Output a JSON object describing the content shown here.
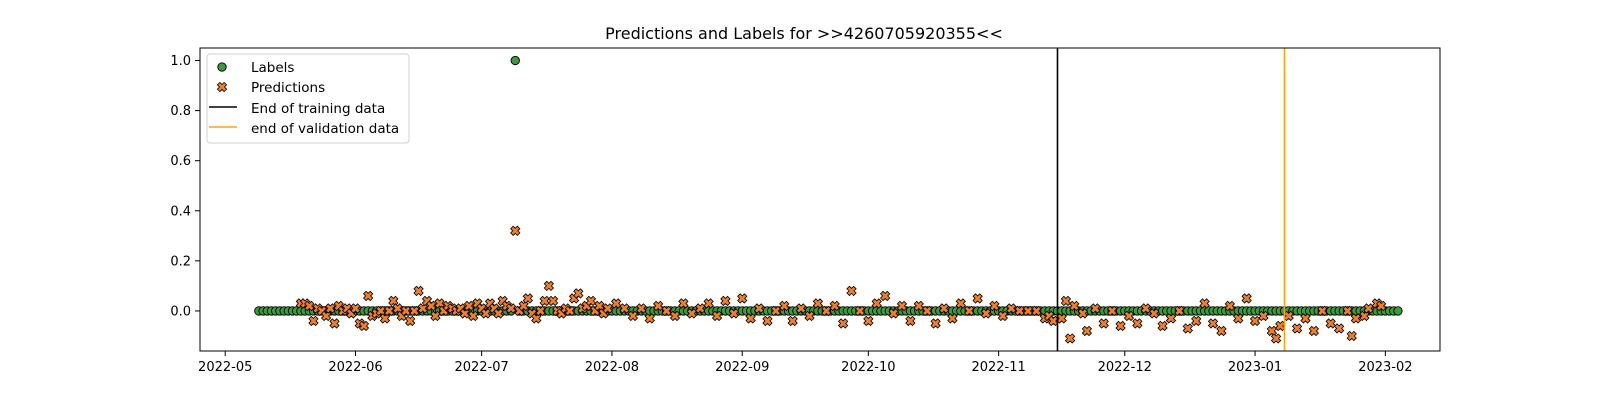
{
  "chart_data": {
    "type": "scatter",
    "title": "Predictions and Labels for >>4260705920355<<",
    "xlabel": "",
    "ylabel": "",
    "xlim": [
      "2022-04-25",
      "2023-02-14"
    ],
    "ylim": [
      -0.16,
      1.05
    ],
    "x_ticks": [
      "2022-05",
      "2022-06",
      "2022-07",
      "2022-08",
      "2022-09",
      "2022-10",
      "2022-11",
      "2022-12",
      "2023-01",
      "2023-02"
    ],
    "y_ticks": [
      "0.0",
      "0.2",
      "0.4",
      "0.6",
      "0.8",
      "1.0"
    ],
    "grid": false,
    "legend": {
      "location": "upper-left",
      "entries": [
        "Labels",
        "Predictions",
        "End of training data",
        "end of validation data"
      ]
    },
    "colors": {
      "labels": "#3a9c3a",
      "predictions": "#f07f26",
      "end_of_training": "#000000",
      "end_of_validation": "#ffa500"
    },
    "date_range": [
      "2022-05-09",
      "2023-02-04"
    ],
    "series": [
      {
        "name": "Labels",
        "marker": "circle",
        "baseline_value": 0.0,
        "spikes": [
          {
            "x": "2022-07-09",
            "y": 1.0
          }
        ]
      },
      {
        "name": "Predictions",
        "marker": "x",
        "points": [
          [
            "2022-05-19",
            0.03
          ],
          [
            "2022-05-20",
            0.03
          ],
          [
            "2022-05-21",
            0.02
          ],
          [
            "2022-05-22",
            -0.04
          ],
          [
            "2022-05-23",
            0.01
          ],
          [
            "2022-05-24",
            0.0
          ],
          [
            "2022-05-25",
            -0.02
          ],
          [
            "2022-05-26",
            0.01
          ],
          [
            "2022-05-27",
            -0.05
          ],
          [
            "2022-05-28",
            0.02
          ],
          [
            "2022-05-29",
            0.0
          ],
          [
            "2022-05-30",
            0.01
          ],
          [
            "2022-05-31",
            -0.01
          ],
          [
            "2022-06-01",
            0.01
          ],
          [
            "2022-06-02",
            -0.05
          ],
          [
            "2022-06-03",
            -0.06
          ],
          [
            "2022-06-04",
            0.06
          ],
          [
            "2022-06-05",
            -0.02
          ],
          [
            "2022-06-06",
            -0.01
          ],
          [
            "2022-06-07",
            0.0
          ],
          [
            "2022-06-08",
            -0.03
          ],
          [
            "2022-06-09",
            0.0
          ],
          [
            "2022-06-10",
            0.04
          ],
          [
            "2022-06-11",
            0.01
          ],
          [
            "2022-06-12",
            -0.02
          ],
          [
            "2022-06-13",
            0.0
          ],
          [
            "2022-06-14",
            -0.04
          ],
          [
            "2022-06-15",
            0.0
          ],
          [
            "2022-06-16",
            0.08
          ],
          [
            "2022-06-17",
            0.01
          ],
          [
            "2022-06-18",
            0.04
          ],
          [
            "2022-06-19",
            0.02
          ],
          [
            "2022-06-20",
            -0.02
          ],
          [
            "2022-06-21",
            0.03
          ],
          [
            "2022-06-22",
            0.0
          ],
          [
            "2022-06-23",
            0.02
          ],
          [
            "2022-06-24",
            0.01
          ],
          [
            "2022-06-25",
            0.0
          ],
          [
            "2022-06-26",
            0.01
          ],
          [
            "2022-06-27",
            -0.01
          ],
          [
            "2022-06-28",
            0.02
          ],
          [
            "2022-06-29",
            -0.02
          ],
          [
            "2022-06-30",
            0.03
          ],
          [
            "2022-07-01",
            0.01
          ],
          [
            "2022-07-02",
            -0.01
          ],
          [
            "2022-07-03",
            0.03
          ],
          [
            "2022-07-04",
            0.01
          ],
          [
            "2022-07-05",
            -0.01
          ],
          [
            "2022-07-06",
            0.04
          ],
          [
            "2022-07-07",
            0.02
          ],
          [
            "2022-07-08",
            0.01
          ],
          [
            "2022-07-09",
            0.32
          ],
          [
            "2022-07-10",
            0.0
          ],
          [
            "2022-07-11",
            0.02
          ],
          [
            "2022-07-12",
            0.05
          ],
          [
            "2022-07-13",
            -0.01
          ],
          [
            "2022-07-14",
            -0.03
          ],
          [
            "2022-07-15",
            0.0
          ],
          [
            "2022-07-16",
            0.04
          ],
          [
            "2022-07-17",
            0.1
          ],
          [
            "2022-07-18",
            0.04
          ],
          [
            "2022-07-19",
            0.0
          ],
          [
            "2022-07-20",
            -0.01
          ],
          [
            "2022-07-21",
            0.01
          ],
          [
            "2022-07-22",
            0.0
          ],
          [
            "2022-07-23",
            0.05
          ],
          [
            "2022-07-24",
            0.07
          ],
          [
            "2022-07-25",
            0.01
          ],
          [
            "2022-07-26",
            0.02
          ],
          [
            "2022-07-27",
            0.04
          ],
          [
            "2022-07-28",
            0.0
          ],
          [
            "2022-07-29",
            0.02
          ],
          [
            "2022-07-30",
            -0.01
          ],
          [
            "2022-07-31",
            0.01
          ],
          [
            "2022-08-02",
            0.03
          ],
          [
            "2022-08-04",
            0.01
          ],
          [
            "2022-08-06",
            -0.02
          ],
          [
            "2022-08-08",
            0.01
          ],
          [
            "2022-08-10",
            -0.03
          ],
          [
            "2022-08-12",
            0.02
          ],
          [
            "2022-08-14",
            0.0
          ],
          [
            "2022-08-16",
            -0.02
          ],
          [
            "2022-08-18",
            0.03
          ],
          [
            "2022-08-20",
            -0.01
          ],
          [
            "2022-08-22",
            0.01
          ],
          [
            "2022-08-24",
            0.03
          ],
          [
            "2022-08-26",
            -0.02
          ],
          [
            "2022-08-28",
            0.04
          ],
          [
            "2022-08-30",
            -0.01
          ],
          [
            "2022-09-01",
            0.05
          ],
          [
            "2022-09-03",
            -0.03
          ],
          [
            "2022-09-05",
            0.01
          ],
          [
            "2022-09-07",
            -0.04
          ],
          [
            "2022-09-09",
            0.0
          ],
          [
            "2022-09-11",
            0.02
          ],
          [
            "2022-09-13",
            -0.04
          ],
          [
            "2022-09-15",
            0.01
          ],
          [
            "2022-09-17",
            -0.02
          ],
          [
            "2022-09-19",
            0.03
          ],
          [
            "2022-09-21",
            0.0
          ],
          [
            "2022-09-23",
            0.02
          ],
          [
            "2022-09-25",
            -0.05
          ],
          [
            "2022-09-27",
            0.08
          ],
          [
            "2022-09-29",
            0.0
          ],
          [
            "2022-10-01",
            -0.04
          ],
          [
            "2022-10-03",
            0.03
          ],
          [
            "2022-10-05",
            0.06
          ],
          [
            "2022-10-07",
            -0.01
          ],
          [
            "2022-10-09",
            0.02
          ],
          [
            "2022-10-11",
            -0.04
          ],
          [
            "2022-10-13",
            0.02
          ],
          [
            "2022-10-15",
            0.0
          ],
          [
            "2022-10-17",
            -0.05
          ],
          [
            "2022-10-19",
            0.01
          ],
          [
            "2022-10-21",
            -0.03
          ],
          [
            "2022-10-23",
            0.03
          ],
          [
            "2022-10-25",
            0.0
          ],
          [
            "2022-10-27",
            0.05
          ],
          [
            "2022-10-29",
            -0.01
          ],
          [
            "2022-10-31",
            0.02
          ],
          [
            "2022-11-02",
            -0.02
          ],
          [
            "2022-11-04",
            0.01
          ],
          [
            "2022-11-06",
            0.0
          ],
          [
            "2022-11-08",
            0.0
          ],
          [
            "2022-11-10",
            0.0
          ],
          [
            "2022-11-12",
            -0.03
          ],
          [
            "2022-11-13",
            -0.02
          ],
          [
            "2022-11-14",
            -0.04
          ],
          [
            "2022-11-16",
            -0.03
          ],
          [
            "2022-11-17",
            0.04
          ],
          [
            "2022-11-18",
            -0.11
          ],
          [
            "2022-11-19",
            0.02
          ],
          [
            "2022-11-21",
            -0.01
          ],
          [
            "2022-11-22",
            -0.08
          ],
          [
            "2022-11-24",
            0.01
          ],
          [
            "2022-11-26",
            -0.05
          ],
          [
            "2022-11-28",
            0.0
          ],
          [
            "2022-11-30",
            -0.06
          ],
          [
            "2022-12-02",
            -0.02
          ],
          [
            "2022-12-04",
            -0.05
          ],
          [
            "2022-12-06",
            0.01
          ],
          [
            "2022-12-08",
            -0.01
          ],
          [
            "2022-12-10",
            -0.06
          ],
          [
            "2022-12-12",
            -0.03
          ],
          [
            "2022-12-14",
            0.0
          ],
          [
            "2022-12-16",
            -0.07
          ],
          [
            "2022-12-18",
            -0.04
          ],
          [
            "2022-12-20",
            0.03
          ],
          [
            "2022-12-22",
            -0.05
          ],
          [
            "2022-12-24",
            -0.08
          ],
          [
            "2022-12-26",
            0.02
          ],
          [
            "2022-12-28",
            -0.03
          ],
          [
            "2022-12-30",
            0.05
          ],
          [
            "2023-01-01",
            -0.04
          ],
          [
            "2023-01-03",
            -0.02
          ],
          [
            "2023-01-05",
            -0.08
          ],
          [
            "2023-01-06",
            -0.11
          ],
          [
            "2023-01-07",
            -0.06
          ],
          [
            "2023-01-09",
            -0.02
          ],
          [
            "2023-01-11",
            -0.07
          ],
          [
            "2023-01-13",
            -0.03
          ],
          [
            "2023-01-15",
            -0.08
          ],
          [
            "2023-01-17",
            0.0
          ],
          [
            "2023-01-19",
            -0.05
          ],
          [
            "2023-01-21",
            -0.07
          ],
          [
            "2023-01-23",
            0.0
          ],
          [
            "2023-01-24",
            -0.1
          ],
          [
            "2023-01-25",
            -0.03
          ],
          [
            "2023-01-27",
            -0.02
          ],
          [
            "2023-01-28",
            0.01
          ],
          [
            "2023-01-30",
            0.03
          ],
          [
            "2023-01-31",
            0.02
          ]
        ]
      }
    ],
    "vertical_lines": [
      {
        "name": "End of training data",
        "x": "2022-11-15"
      },
      {
        "name": "end of validation data",
        "x": "2023-01-08"
      }
    ]
  }
}
